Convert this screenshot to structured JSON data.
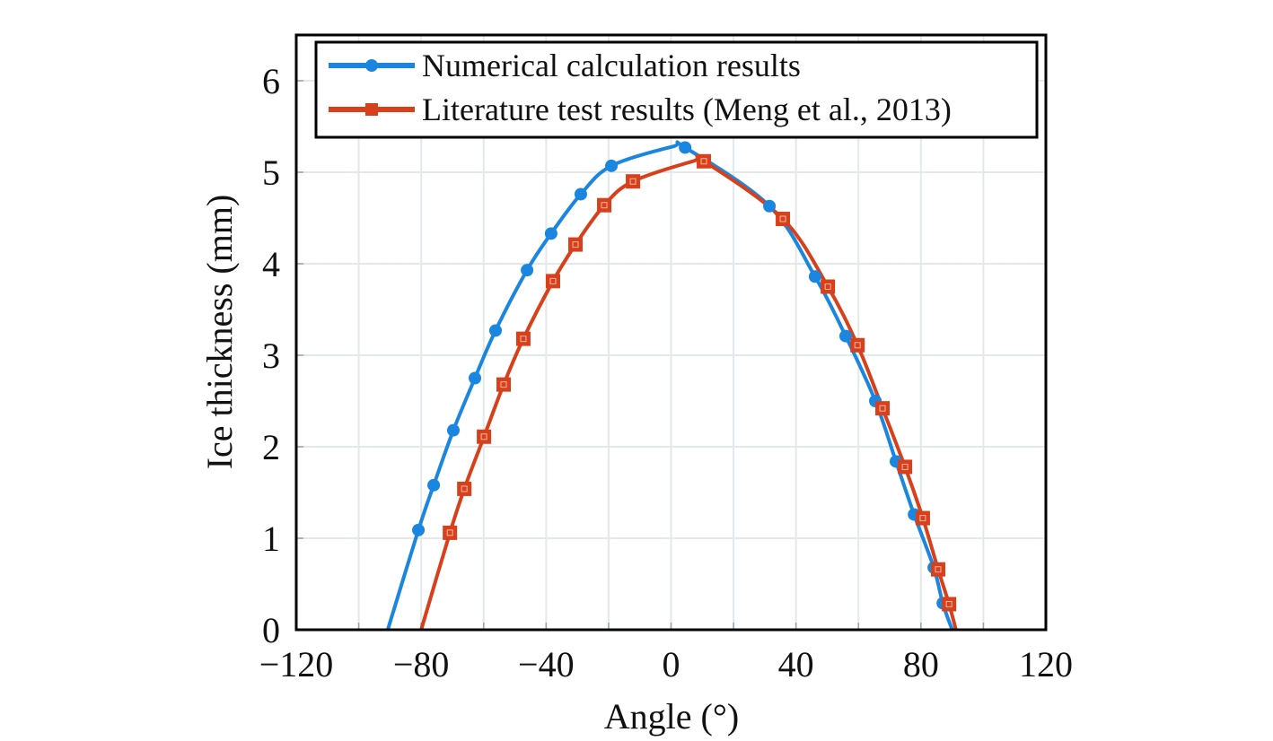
{
  "chart_data": {
    "type": "line",
    "title": "",
    "xlabel": "Angle (°)",
    "ylabel": "Ice thickness (mm)",
    "xlim": [
      -120,
      120
    ],
    "ylim": [
      0,
      6.5
    ],
    "x_ticks": [
      -120,
      -80,
      -40,
      0,
      40,
      80,
      120
    ],
    "x_tick_labels": [
      "−120",
      "−80",
      "−40",
      "0",
      "40",
      "80",
      "120"
    ],
    "x_grid_step": 20,
    "y_ticks": [
      0,
      1,
      2,
      3,
      4,
      5,
      6
    ],
    "y_tick_labels": [
      "0",
      "1",
      "2",
      "3",
      "4",
      "5",
      "6"
    ],
    "grid": true,
    "legend_position": "top",
    "series": [
      {
        "name": "Numerical calculation results",
        "color": "#1a86e0",
        "marker": "circle",
        "x": [
          -80.9,
          -76.0,
          -69.7,
          -62.8,
          -56.2,
          -46.1,
          -38.4,
          -28.9,
          -19.1,
          4.5,
          31.5,
          46.1,
          55.9,
          65.4,
          72.0,
          77.8,
          84.1,
          87.0
        ],
        "y": [
          1.09,
          1.58,
          2.18,
          2.75,
          3.27,
          3.93,
          4.33,
          4.76,
          5.07,
          5.27,
          4.63,
          3.86,
          3.21,
          2.5,
          1.84,
          1.26,
          0.68,
          0.29
        ],
        "curve": {
          "x_zero_left": -90.7,
          "x_peak": 0.5,
          "y_peak": 5.28,
          "x_zero_right": 90.0
        }
      },
      {
        "name": "Literature test results (Meng et al., 2013)",
        "color": "#d8401c",
        "marker": "square",
        "x": [
          -70.8,
          -66.2,
          -59.9,
          -53.6,
          -47.3,
          -37.8,
          -30.6,
          -21.4,
          -12.2,
          10.5,
          35.8,
          50.2,
          59.7,
          67.7,
          74.9,
          80.6,
          85.5,
          89.0
        ],
        "y": [
          1.06,
          1.54,
          2.11,
          2.68,
          3.18,
          3.81,
          4.21,
          4.64,
          4.9,
          5.12,
          4.49,
          3.75,
          3.11,
          2.42,
          1.78,
          1.22,
          0.66,
          0.28
        ],
        "curve": {
          "x_zero_left": -80.0,
          "x_peak": 7.0,
          "y_peak": 5.12,
          "x_zero_right": 91.2
        }
      }
    ]
  }
}
